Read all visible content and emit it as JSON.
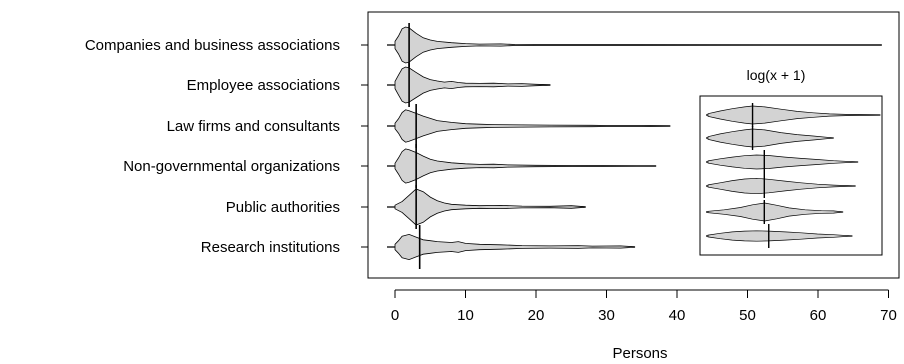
{
  "chart_data": {
    "type": "violin",
    "xlabel": "Persons",
    "x_ticks": [
      0,
      10,
      20,
      30,
      40,
      50,
      60,
      70
    ],
    "categories": [
      "Companies and business associations",
      "Employee associations",
      "Law firms and consultants",
      "Non-governmental organizations",
      "Public authorities",
      "Research institutions"
    ],
    "series": [
      {
        "label": "Companies and business associations",
        "min": 0,
        "max": 69,
        "median": 2,
        "density": [
          [
            0,
            0.2
          ],
          [
            0.5,
            0.5
          ],
          [
            1,
            0.9
          ],
          [
            1.5,
            1
          ],
          [
            2,
            0.95
          ],
          [
            3,
            0.65
          ],
          [
            4,
            0.4
          ],
          [
            5,
            0.28
          ],
          [
            6,
            0.2
          ],
          [
            8,
            0.13
          ],
          [
            10,
            0.08
          ],
          [
            12,
            0.05
          ],
          [
            15,
            0.06
          ],
          [
            17,
            0.03
          ],
          [
            20,
            0.02
          ],
          [
            30,
            0.015
          ],
          [
            69,
            0.01
          ]
        ]
      },
      {
        "label": "Employee associations",
        "min": 0,
        "max": 22,
        "median": 2,
        "density": [
          [
            0,
            0.2
          ],
          [
            0.5,
            0.55
          ],
          [
            1,
            0.9
          ],
          [
            1.5,
            1
          ],
          [
            2,
            0.95
          ],
          [
            3,
            0.7
          ],
          [
            4,
            0.45
          ],
          [
            5,
            0.3
          ],
          [
            6,
            0.22
          ],
          [
            7,
            0.16
          ],
          [
            8,
            0.2
          ],
          [
            9,
            0.14
          ],
          [
            10,
            0.1
          ],
          [
            12,
            0.09
          ],
          [
            14,
            0.1
          ],
          [
            16,
            0.06
          ],
          [
            18,
            0.08
          ],
          [
            20,
            0.04
          ],
          [
            22,
            0.01
          ]
        ]
      },
      {
        "label": "Law firms and consultants",
        "min": 0,
        "max": 39,
        "median": 3,
        "density": [
          [
            0,
            0.15
          ],
          [
            0.5,
            0.4
          ],
          [
            1,
            0.75
          ],
          [
            1.5,
            0.9
          ],
          [
            2,
            0.85
          ],
          [
            3,
            0.7
          ],
          [
            4,
            0.55
          ],
          [
            5,
            0.42
          ],
          [
            6,
            0.3
          ],
          [
            8,
            0.2
          ],
          [
            10,
            0.13
          ],
          [
            12,
            0.1
          ],
          [
            14,
            0.08
          ],
          [
            18,
            0.06
          ],
          [
            22,
            0.05
          ],
          [
            28,
            0.04
          ],
          [
            30,
            0.03
          ],
          [
            35,
            0.03
          ],
          [
            39,
            0.01
          ]
        ]
      },
      {
        "label": "Non-governmental organizations",
        "min": 0,
        "max": 37,
        "median": 3,
        "density": [
          [
            0,
            0.15
          ],
          [
            0.5,
            0.45
          ],
          [
            1,
            0.8
          ],
          [
            1.5,
            0.95
          ],
          [
            2,
            0.9
          ],
          [
            3,
            0.75
          ],
          [
            4,
            0.55
          ],
          [
            5,
            0.38
          ],
          [
            6,
            0.28
          ],
          [
            8,
            0.18
          ],
          [
            10,
            0.12
          ],
          [
            12,
            0.09
          ],
          [
            14,
            0.1
          ],
          [
            16,
            0.06
          ],
          [
            20,
            0.04
          ],
          [
            25,
            0.03
          ],
          [
            30,
            0.02
          ],
          [
            37,
            0.01
          ]
        ]
      },
      {
        "label": "Public authorities",
        "min": 0,
        "max": 27,
        "median": 3,
        "density": [
          [
            0,
            0.1
          ],
          [
            1,
            0.3
          ],
          [
            2,
            0.65
          ],
          [
            3,
            1
          ],
          [
            4,
            0.85
          ],
          [
            5,
            0.55
          ],
          [
            6,
            0.35
          ],
          [
            7,
            0.22
          ],
          [
            8,
            0.15
          ],
          [
            10,
            0.1
          ],
          [
            12,
            0.07
          ],
          [
            15,
            0.09
          ],
          [
            18,
            0.05
          ],
          [
            22,
            0.04
          ],
          [
            25,
            0.07
          ],
          [
            27,
            0.01
          ]
        ]
      },
      {
        "label": "Research institutions",
        "min": 0,
        "max": 34,
        "median": 3.5,
        "density": [
          [
            0,
            0.15
          ],
          [
            0.5,
            0.35
          ],
          [
            1,
            0.6
          ],
          [
            2,
            0.7
          ],
          [
            3,
            0.55
          ],
          [
            4,
            0.4
          ],
          [
            5,
            0.35
          ],
          [
            6,
            0.3
          ],
          [
            8,
            0.25
          ],
          [
            9,
            0.3
          ],
          [
            10,
            0.2
          ],
          [
            12,
            0.15
          ],
          [
            15,
            0.12
          ],
          [
            18,
            0.08
          ],
          [
            22,
            0.06
          ],
          [
            26,
            0.08
          ],
          [
            28,
            0.05
          ],
          [
            32,
            0.06
          ],
          [
            34,
            0.01
          ]
        ]
      }
    ],
    "inset": {
      "title": "log(x + 1)",
      "series": [
        {
          "label": "Companies and business associations",
          "min": 0,
          "max": 4.25,
          "median": 1.1,
          "density": [
            [
              0,
              0.15
            ],
            [
              0.3,
              0.45
            ],
            [
              0.6,
              0.7
            ],
            [
              0.9,
              0.9
            ],
            [
              1.1,
              1
            ],
            [
              1.4,
              0.9
            ],
            [
              1.8,
              0.65
            ],
            [
              2.2,
              0.4
            ],
            [
              2.6,
              0.25
            ],
            [
              3,
              0.12
            ],
            [
              3.5,
              0.05
            ],
            [
              4.25,
              0.01
            ]
          ]
        },
        {
          "label": "Employee associations",
          "min": 0,
          "max": 3.1,
          "median": 1.1,
          "density": [
            [
              0,
              0.15
            ],
            [
              0.3,
              0.45
            ],
            [
              0.6,
              0.7
            ],
            [
              0.9,
              0.9
            ],
            [
              1.1,
              1
            ],
            [
              1.4,
              0.9
            ],
            [
              1.8,
              0.6
            ],
            [
              2.2,
              0.38
            ],
            [
              2.6,
              0.22
            ],
            [
              3.1,
              0.01
            ]
          ]
        },
        {
          "label": "Law firms and consultants",
          "min": 0,
          "max": 3.7,
          "median": 1.39,
          "density": [
            [
              0,
              0.12
            ],
            [
              0.3,
              0.35
            ],
            [
              0.6,
              0.55
            ],
            [
              0.9,
              0.7
            ],
            [
              1.2,
              0.78
            ],
            [
              1.5,
              0.72
            ],
            [
              1.9,
              0.55
            ],
            [
              2.3,
              0.4
            ],
            [
              2.7,
              0.28
            ],
            [
              3.1,
              0.15
            ],
            [
              3.7,
              0.01
            ]
          ]
        },
        {
          "label": "Non-governmental organizations",
          "min": 0,
          "max": 3.64,
          "median": 1.39,
          "density": [
            [
              0,
              0.12
            ],
            [
              0.3,
              0.35
            ],
            [
              0.6,
              0.6
            ],
            [
              0.9,
              0.78
            ],
            [
              1.2,
              0.85
            ],
            [
              1.5,
              0.75
            ],
            [
              1.9,
              0.55
            ],
            [
              2.3,
              0.35
            ],
            [
              2.7,
              0.2
            ],
            [
              3.1,
              0.1
            ],
            [
              3.64,
              0.01
            ]
          ]
        },
        {
          "label": "Public authorities",
          "min": 0,
          "max": 3.33,
          "median": 1.39,
          "density": [
            [
              0,
              0.08
            ],
            [
              0.4,
              0.25
            ],
            [
              0.8,
              0.5
            ],
            [
              1.1,
              0.8
            ],
            [
              1.4,
              1
            ],
            [
              1.7,
              0.75
            ],
            [
              2,
              0.45
            ],
            [
              2.4,
              0.25
            ],
            [
              2.8,
              0.15
            ],
            [
              3.1,
              0.12
            ],
            [
              3.33,
              0.01
            ]
          ]
        },
        {
          "label": "Research institutions",
          "min": 0,
          "max": 3.56,
          "median": 1.5,
          "density": [
            [
              0,
              0.1
            ],
            [
              0.3,
              0.3
            ],
            [
              0.6,
              0.45
            ],
            [
              0.9,
              0.55
            ],
            [
              1.2,
              0.58
            ],
            [
              1.5,
              0.55
            ],
            [
              1.9,
              0.45
            ],
            [
              2.3,
              0.35
            ],
            [
              2.7,
              0.22
            ],
            [
              3.1,
              0.15
            ],
            [
              3.56,
              0.01
            ]
          ]
        }
      ]
    }
  }
}
